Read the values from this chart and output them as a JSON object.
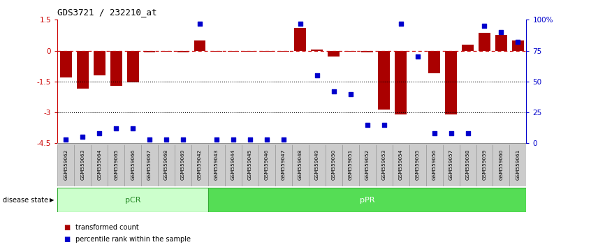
{
  "title": "GDS3721 / 232210_at",
  "samples": [
    "GSM559062",
    "GSM559063",
    "GSM559064",
    "GSM559065",
    "GSM559066",
    "GSM559067",
    "GSM559068",
    "GSM559069",
    "GSM559042",
    "GSM559043",
    "GSM559044",
    "GSM559045",
    "GSM559046",
    "GSM559047",
    "GSM559048",
    "GSM559049",
    "GSM559050",
    "GSM559051",
    "GSM559052",
    "GSM559053",
    "GSM559054",
    "GSM559055",
    "GSM559056",
    "GSM559057",
    "GSM559058",
    "GSM559059",
    "GSM559060",
    "GSM559061"
  ],
  "bar_values": [
    -1.3,
    -1.85,
    -1.2,
    -1.7,
    -1.55,
    -0.08,
    -0.05,
    -0.08,
    0.5,
    -0.05,
    -0.05,
    -0.05,
    -0.05,
    -0.05,
    1.1,
    0.05,
    -0.3,
    -0.05,
    -0.08,
    -2.85,
    -3.1,
    0.0,
    -1.1,
    -3.1,
    0.3,
    0.85,
    0.75,
    0.5
  ],
  "percentile_values": [
    3,
    5,
    8,
    12,
    12,
    3,
    3,
    3,
    97,
    3,
    3,
    3,
    3,
    3,
    97,
    55,
    42,
    40,
    15,
    15,
    97,
    70,
    8,
    8,
    8,
    95,
    90,
    82
  ],
  "pCR_count": 9,
  "pPR_count": 19,
  "ylim_left": [
    -4.5,
    1.5
  ],
  "ylim_right": [
    0,
    100
  ],
  "yticks_left": [
    1.5,
    0,
    -1.5,
    -3,
    -4.5
  ],
  "yticks_right": [
    100,
    75,
    50,
    25,
    0
  ],
  "bar_color": "#aa0000",
  "dot_color": "#0000cc",
  "pCR_facecolor": "#ccffcc",
  "pCR_edgecolor": "#33aa33",
  "pPR_facecolor": "#55dd55",
  "pPR_edgecolor": "#33aa33",
  "pCR_label": "pCR",
  "pPR_label": "pPR",
  "pCR_text_color": "#228822",
  "pPR_text_color": "white",
  "disease_state_label": "disease state",
  "legend_bar_label": "transformed count",
  "legend_dot_label": "percentile rank within the sample",
  "zero_line_color": "#cc0000",
  "dotted_line_color": "black",
  "sample_box_color": "#cccccc",
  "sample_box_edge": "#999999"
}
